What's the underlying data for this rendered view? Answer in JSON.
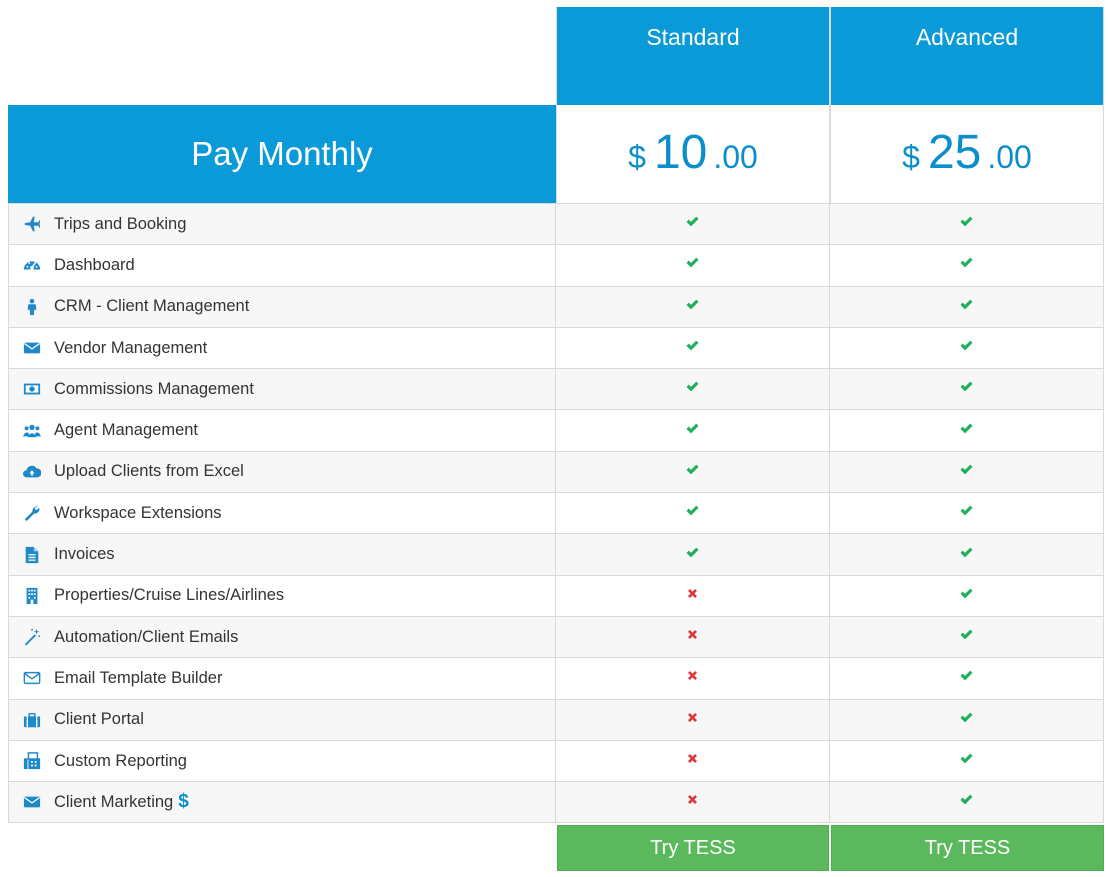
{
  "plans": [
    {
      "name": "Standard",
      "currency": "$",
      "amount": "10",
      "cents": ".00",
      "cta": "Try TESS"
    },
    {
      "name": "Advanced",
      "currency": "$",
      "amount": "25",
      "cents": ".00",
      "cta": "Try TESS"
    }
  ],
  "billing_label": "Pay Monthly",
  "colors": {
    "header_blue": "#0b9ad8",
    "check_green": "#1fae5a",
    "cross_red": "#d9393a",
    "button_green": "#5cb85c"
  },
  "features": [
    {
      "label": "Trips and Booking",
      "icon": "plane-icon",
      "standard": true,
      "advanced": true
    },
    {
      "label": "Dashboard",
      "icon": "dashboard-icon",
      "standard": true,
      "advanced": true
    },
    {
      "label": "CRM - Client Management",
      "icon": "person-icon",
      "standard": true,
      "advanced": true
    },
    {
      "label": "Vendor Management",
      "icon": "envelope-icon",
      "standard": true,
      "advanced": true
    },
    {
      "label": "Commissions Management",
      "icon": "money-icon",
      "standard": true,
      "advanced": true
    },
    {
      "label": "Agent Management",
      "icon": "users-icon",
      "standard": true,
      "advanced": true
    },
    {
      "label": "Upload Clients from Excel",
      "icon": "cloud-upload-icon",
      "standard": true,
      "advanced": true
    },
    {
      "label": "Workspace Extensions",
      "icon": "wrench-icon",
      "standard": true,
      "advanced": true
    },
    {
      "label": "Invoices",
      "icon": "file-icon",
      "standard": true,
      "advanced": true
    },
    {
      "label": "Properties/Cruise Lines/Airlines",
      "icon": "building-icon",
      "standard": false,
      "advanced": true
    },
    {
      "label": "Automation/Client Emails",
      "icon": "magic-wand-icon",
      "standard": false,
      "advanced": true
    },
    {
      "label": "Email Template Builder",
      "icon": "envelope-outline-icon",
      "standard": false,
      "advanced": true
    },
    {
      "label": "Client Portal",
      "icon": "suitcase-icon",
      "standard": false,
      "advanced": true
    },
    {
      "label": "Custom Reporting",
      "icon": "fax-icon",
      "standard": false,
      "advanced": true
    },
    {
      "label": "Client Marketing",
      "icon": "envelope-icon",
      "extra": "$",
      "standard": false,
      "advanced": true
    }
  ]
}
